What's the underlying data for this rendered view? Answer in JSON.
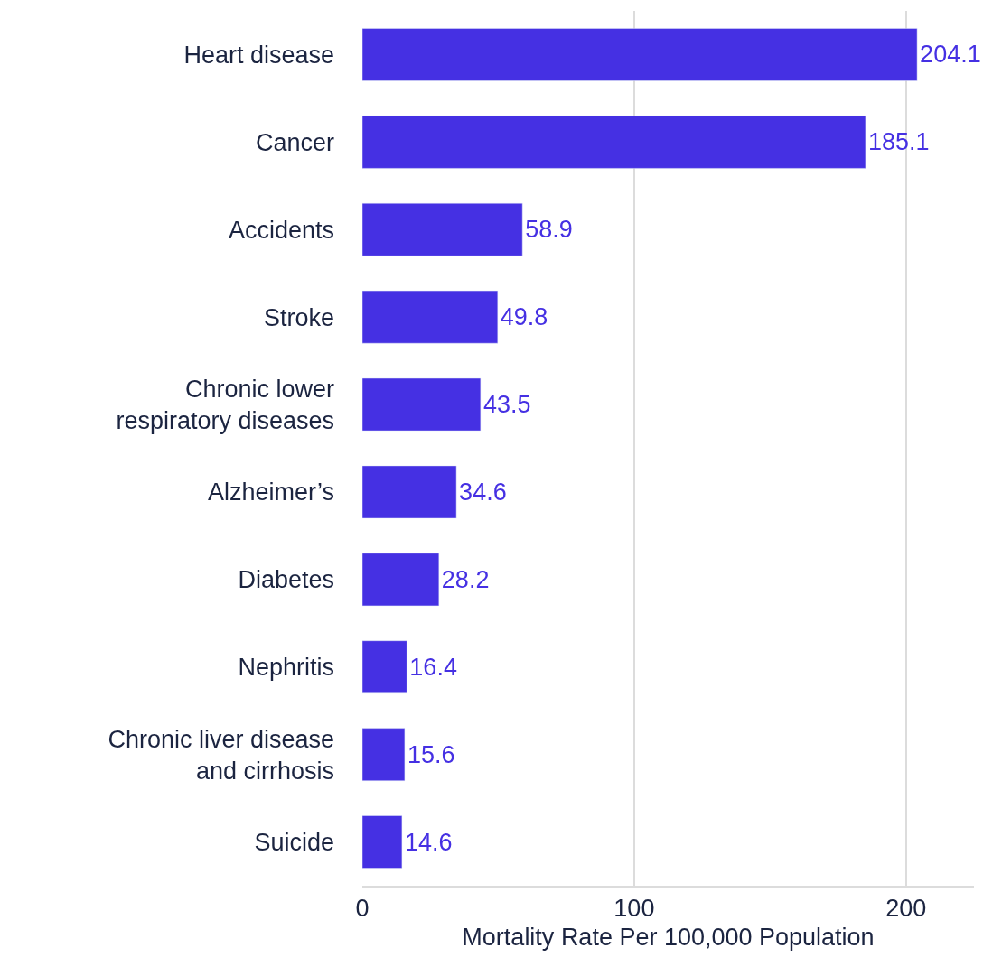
{
  "chart_data": {
    "type": "bar",
    "orientation": "horizontal",
    "xlabel": "Mortality Rate Per 100,000 Population",
    "categories": [
      "Heart disease",
      "Cancer",
      "Accidents",
      "Stroke",
      "Chronic lower\nrespiratory diseases",
      "Alzheimer’s",
      "Diabetes",
      "Nephritis",
      "Chronic liver disease\nand cirrhosis",
      "Suicide"
    ],
    "values": [
      204.1,
      185.1,
      58.9,
      49.8,
      43.5,
      34.6,
      28.2,
      16.4,
      15.6,
      14.6
    ],
    "color": "#4530e3",
    "xlim": [
      0,
      225
    ],
    "xticks": [
      0,
      100,
      200
    ],
    "grid": "x",
    "data_labels": true,
    "legend": false
  }
}
